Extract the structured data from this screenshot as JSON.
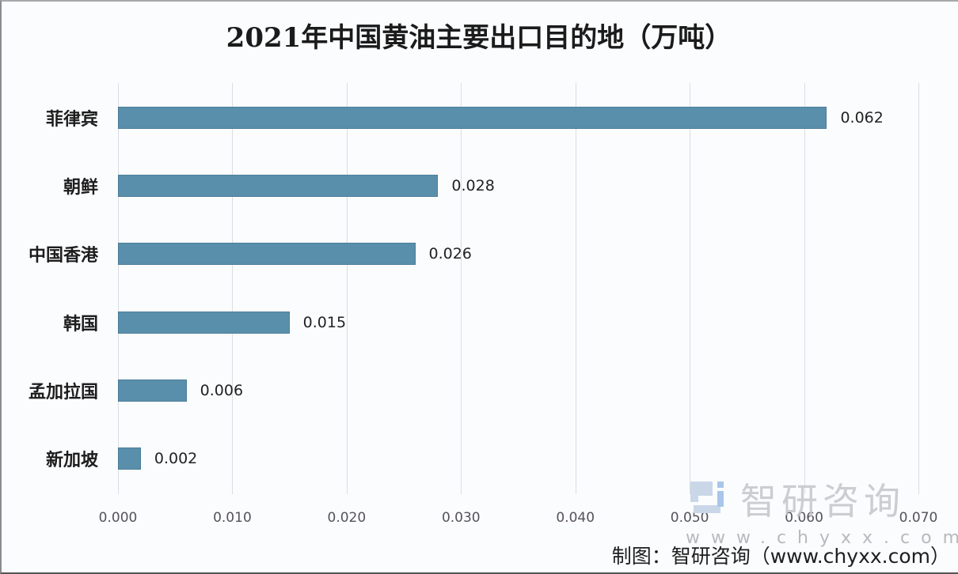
{
  "chart_data": {
    "type": "bar",
    "orientation": "horizontal",
    "title": "2021年中国黄油主要出口目的地（万吨）",
    "xlabel": "",
    "ylabel": "",
    "categories": [
      "菲律宾",
      "朝鲜",
      "中国香港",
      "韩国",
      "孟加拉国",
      "新加坡"
    ],
    "values": [
      0.062,
      0.028,
      0.026,
      0.015,
      0.006,
      0.002
    ],
    "value_labels": [
      "0.062",
      "0.028",
      "0.026",
      "0.015",
      "0.006",
      "0.002"
    ],
    "xlim": [
      0,
      0.07
    ],
    "x_ticks": [
      "0.000",
      "0.010",
      "0.020",
      "0.030",
      "0.040",
      "0.050",
      "0.060",
      "0.070"
    ],
    "grid": true,
    "legend": "none",
    "bar_color": "#5a8fab"
  },
  "watermark": {
    "brand": "智研咨询",
    "url": "www.chyxx.com"
  },
  "source": "制图：智研咨询（www.chyxx.com）"
}
